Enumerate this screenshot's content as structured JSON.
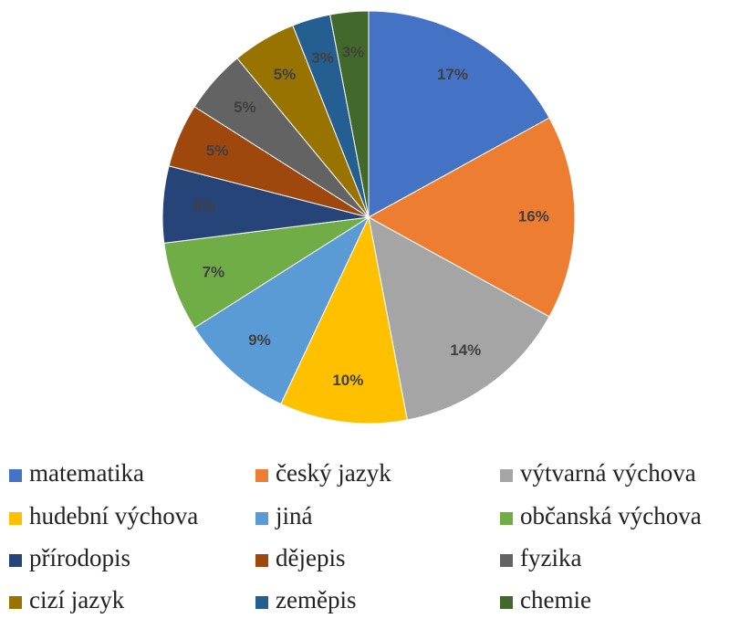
{
  "chart_data": {
    "type": "pie",
    "categories": [
      "matematika",
      "český jazyk",
      "výtvarná výchova",
      "hudební výchova",
      "jiná",
      "občanská výchova",
      "přírodopis",
      "dějepis",
      "fyzika",
      "cizí jazyk",
      "zeměpis",
      "chemie"
    ],
    "values": [
      17,
      16,
      14,
      10,
      9,
      7,
      6,
      5,
      5,
      5,
      3,
      3
    ],
    "value_labels": [
      "17%",
      "16%",
      "14%",
      "10%",
      "9%",
      "7%",
      "6%",
      "5%",
      "5%",
      "5%",
      "3%",
      "3%"
    ],
    "colors": [
      "#4472c4",
      "#ed7d31",
      "#a5a5a5",
      "#ffc000",
      "#5b9bd5",
      "#70ad47",
      "#264478",
      "#9e480e",
      "#636363",
      "#997300",
      "#255e91",
      "#43682b"
    ],
    "legend": "bottom"
  }
}
